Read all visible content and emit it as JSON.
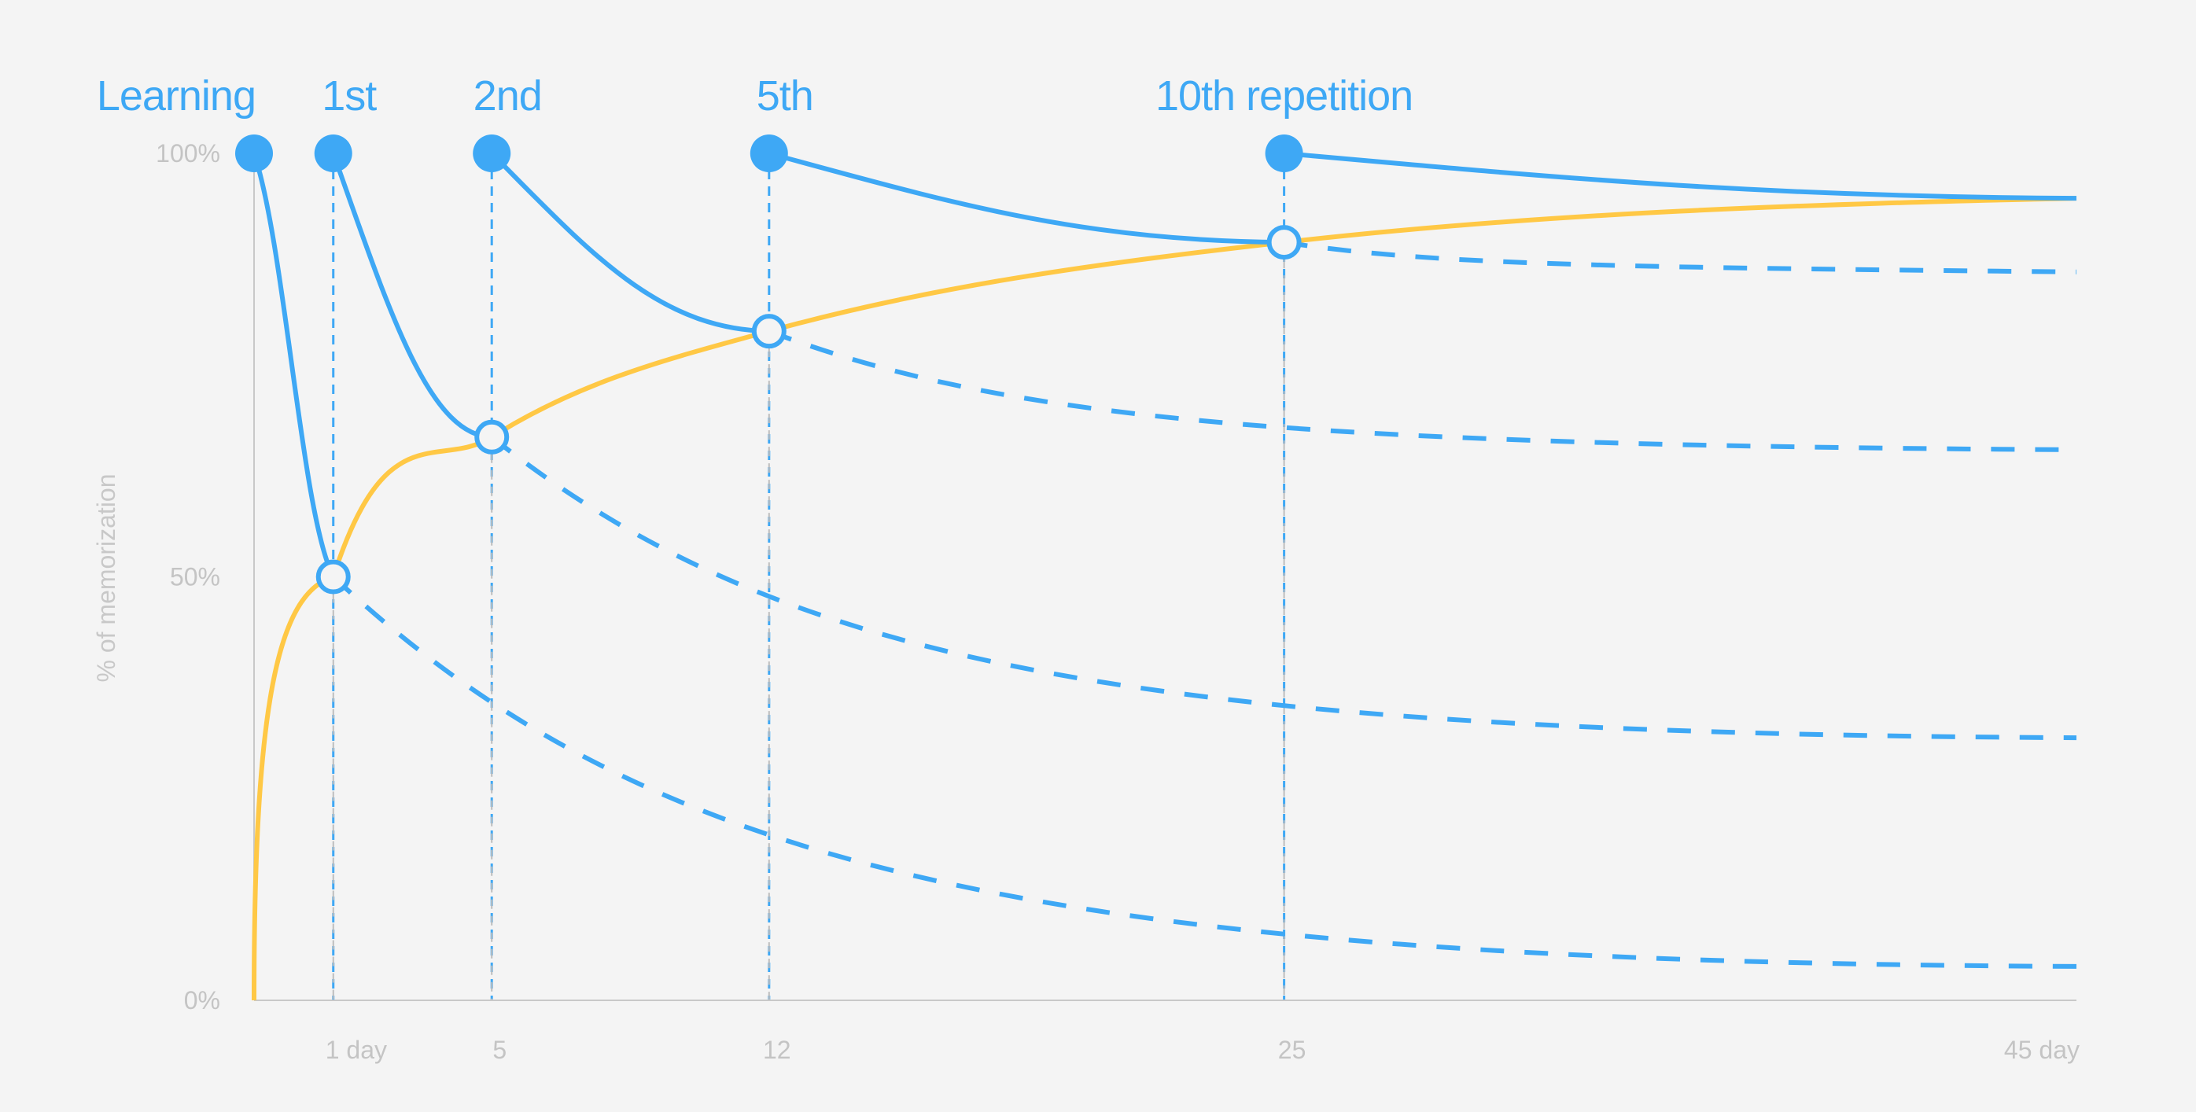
{
  "chart_data": {
    "type": "line",
    "ylabel": "% of memorization",
    "y_ticks": [
      "0%",
      "50%",
      "100%"
    ],
    "x_ticks": [
      {
        "x": 1,
        "label": "1 day"
      },
      {
        "x": 5,
        "label": "5"
      },
      {
        "x": 12,
        "label": "12"
      },
      {
        "x": 25,
        "label": "25"
      },
      {
        "x": 45,
        "label": "45 day"
      }
    ],
    "xlim": [
      -1,
      45
    ],
    "ylim": [
      0,
      100
    ],
    "colors": {
      "retention": "#3ea8f5",
      "memorization": "#ffc845",
      "axis": "#c8c8c8",
      "guide": "#bdbdbd",
      "background": "#f4f4f4"
    },
    "repetitions": [
      {
        "label": "Learning",
        "day": -1,
        "y_start": 100,
        "y_end": 50,
        "dashed_tail_end": null
      },
      {
        "label": "1st",
        "day": 1,
        "y_start": 100,
        "y_end": 66.5,
        "dashed_tail_end": 4
      },
      {
        "label": "2nd",
        "day": 5,
        "y_start": 100,
        "y_end": 79,
        "dashed_tail_end": 31
      },
      {
        "label": "5th",
        "day": 12,
        "y_start": 100,
        "y_end": 89.5,
        "dashed_tail_end": 65
      },
      {
        "label": "10th repetition",
        "day": 25,
        "y_start": 100,
        "y_end": 94.7,
        "dashed_tail_end": 86
      }
    ],
    "memorization_curve": {
      "points": [
        {
          "x": -1,
          "y": 0
        },
        {
          "x": 1,
          "y": 50
        },
        {
          "x": 5,
          "y": 66.5
        },
        {
          "x": 12,
          "y": 79
        },
        {
          "x": 25,
          "y": 89.5
        },
        {
          "x": 45,
          "y": 94.7
        }
      ]
    },
    "grid": false,
    "legend": "none"
  }
}
